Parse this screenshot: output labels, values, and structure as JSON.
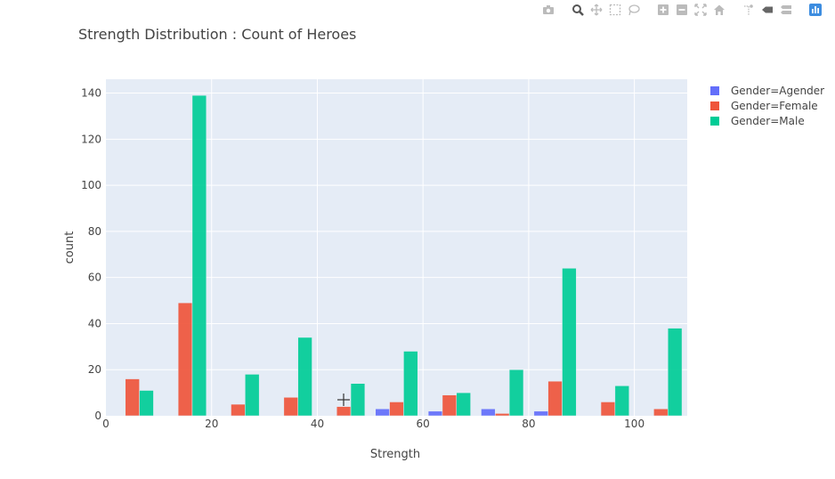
{
  "chart_data": {
    "type": "bar",
    "title": "Strength Distribution : Count of Heroes",
    "xlabel": "Strength",
    "ylabel": "count",
    "xlim": [
      0,
      110
    ],
    "ylim": [
      0,
      146
    ],
    "xticks": [
      0,
      20,
      40,
      60,
      80,
      100
    ],
    "yticks": [
      0,
      20,
      40,
      60,
      80,
      100,
      120,
      140
    ],
    "bin_starts": [
      0,
      10,
      20,
      30,
      40,
      50,
      60,
      70,
      80,
      90,
      100
    ],
    "bin_width": 10,
    "grid": true,
    "legend_position": "top-right",
    "series": [
      {
        "name": "Gender=Agender",
        "color": "#636efa",
        "values": [
          0,
          0,
          0,
          0,
          0,
          3,
          2,
          3,
          2,
          0,
          0
        ]
      },
      {
        "name": "Gender=Female",
        "color": "#ef553b",
        "values": [
          16,
          49,
          5,
          8,
          4,
          6,
          9,
          1,
          15,
          6,
          3
        ]
      },
      {
        "name": "Gender=Male",
        "color": "#00cc96",
        "values": [
          11,
          139,
          18,
          34,
          14,
          28,
          10,
          20,
          64,
          13,
          38
        ]
      }
    ]
  },
  "toolbar": [
    "camera-icon",
    "zoom-icon",
    "pan-icon",
    "box-select-icon",
    "lasso-icon",
    "zoom-in-icon",
    "zoom-out-icon",
    "autoscale-icon",
    "home-icon",
    "spike-lines-icon",
    "hover-closest-icon",
    "hover-compare-icon",
    "plotly-logo-icon"
  ]
}
